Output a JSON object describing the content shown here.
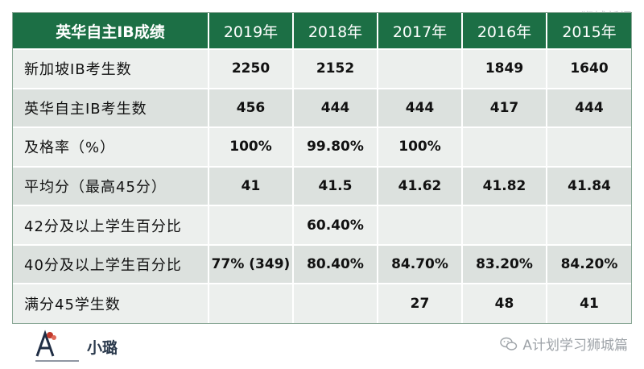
{
  "watermark": "狮城新闻",
  "table": {
    "title": "英华自主IB成绩",
    "years": [
      "2019年",
      "2018年",
      "2017年",
      "2016年",
      "2015年"
    ],
    "rows": [
      {
        "label": "新加坡IB考生数",
        "values": [
          "2250",
          "2152",
          "",
          "1849",
          "1640"
        ]
      },
      {
        "label": "英华自主IB考生数",
        "values": [
          "456",
          "444",
          "444",
          "417",
          "444"
        ]
      },
      {
        "label": "及格率（%）",
        "values": [
          "100%",
          "99.80%",
          "100%",
          "",
          ""
        ]
      },
      {
        "label": "平均分（最高45分）",
        "values": [
          "41",
          "41.5",
          "41.62",
          "41.82",
          "41.84"
        ]
      },
      {
        "label": "42分及以上学生百分比",
        "values": [
          "",
          "60.40%",
          "",
          "",
          ""
        ]
      },
      {
        "label": "40分及以上学生百分比",
        "values": [
          "77% (349)",
          "80.40%",
          "84.70%",
          "83.20%",
          "84.20%"
        ]
      },
      {
        "label": "满分45学生数",
        "values": [
          "",
          "",
          "27",
          "48",
          "41"
        ]
      }
    ]
  },
  "footer": {
    "author": "小璐",
    "wechat_name": "A计划学习狮城篇",
    "logo_icon": "a-plan-logo-icon",
    "wechat_icon": "wechat-icon"
  }
}
